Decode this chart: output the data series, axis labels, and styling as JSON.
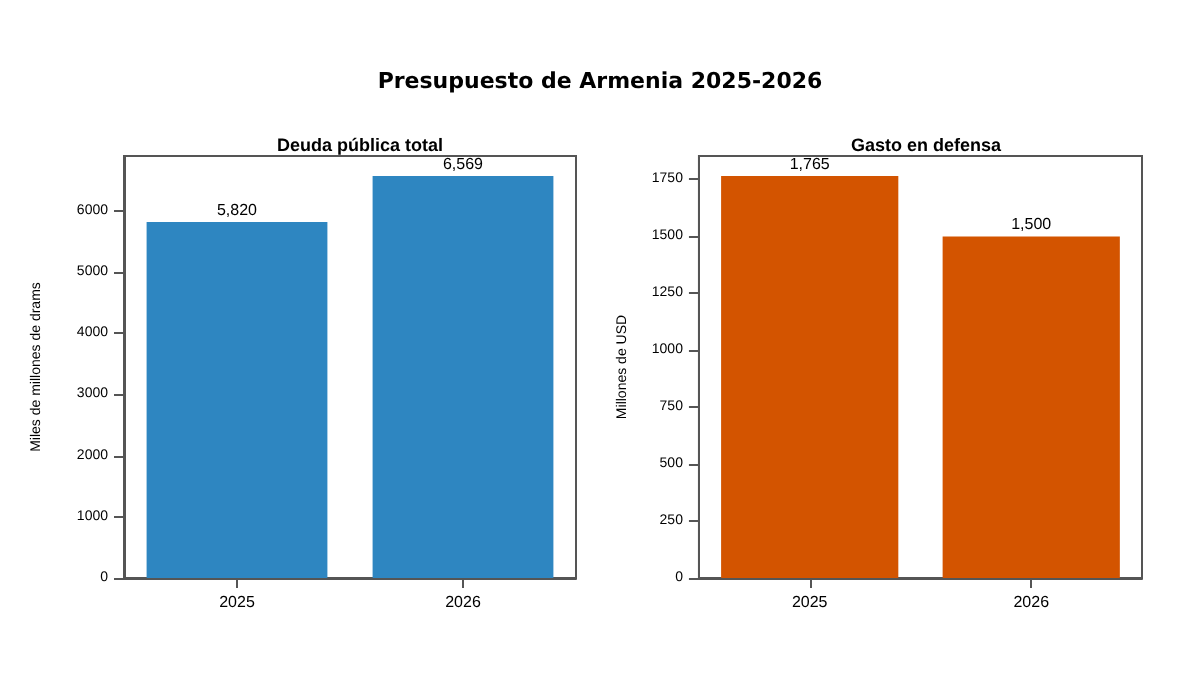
{
  "chart_data": [
    {
      "type": "bar",
      "title": "Deuda pública total",
      "annotations": [
        "Presupuesto de Armenia 2025-2026"
      ],
      "ylabel": "Miles de millones de drams",
      "categories": [
        "2025",
        "2026"
      ],
      "values": [
        5820,
        6569
      ],
      "value_labels": [
        "5,820",
        "6,569"
      ],
      "color": "#2e86c1",
      "ylim": [
        0,
        6897
      ],
      "yticks": [
        0,
        1000,
        2000,
        3000,
        4000,
        5000,
        6000
      ],
      "grid": false
    },
    {
      "type": "bar",
      "title": "Gasto en defensa",
      "ylabel": "Millones de USD",
      "categories": [
        "2025",
        "2026"
      ],
      "values": [
        1765,
        1500
      ],
      "value_labels": [
        "1,765",
        "1,500"
      ],
      "color": "#d35400",
      "ylim": [
        0,
        1853
      ],
      "yticks": [
        0,
        250,
        500,
        750,
        1000,
        1250,
        1500,
        1750
      ],
      "grid": false
    }
  ]
}
